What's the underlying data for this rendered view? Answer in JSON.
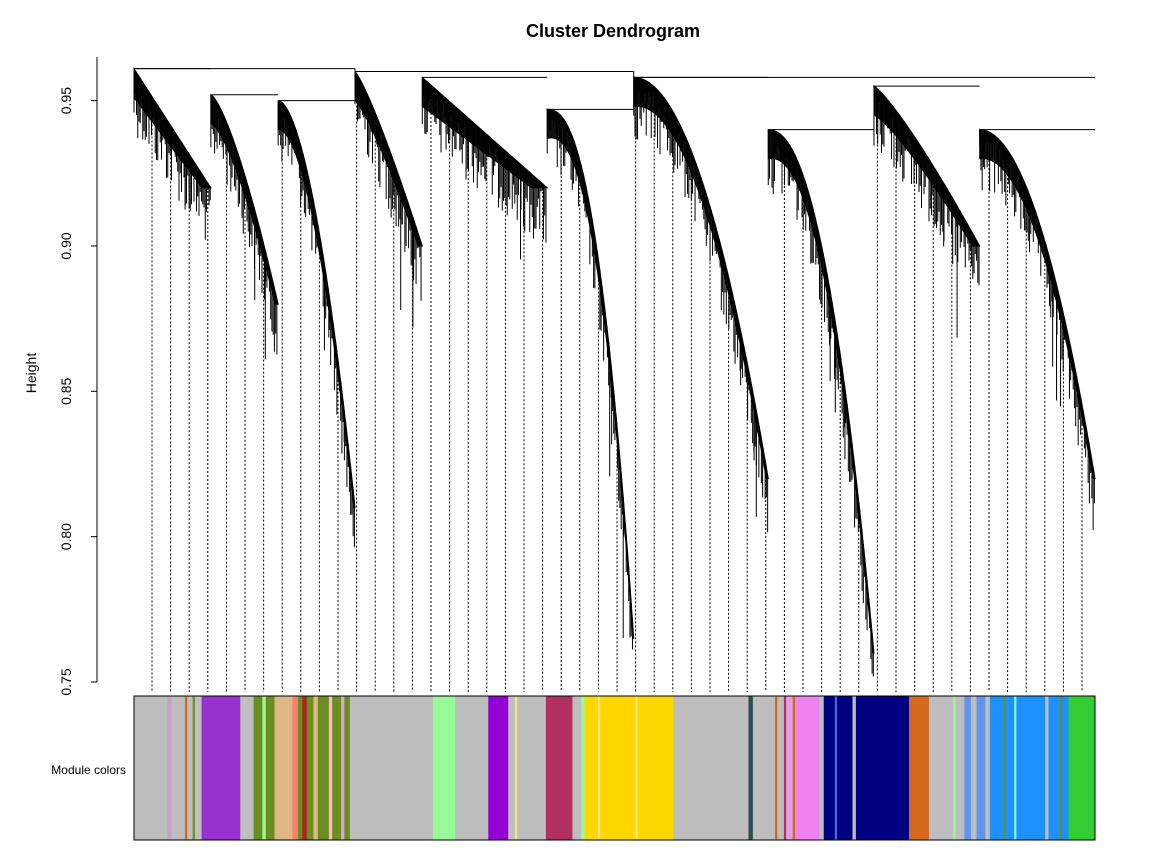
{
  "chart_data": {
    "type": "dendrogram",
    "title": "Cluster Dendrogram",
    "ylabel": "Height",
    "xlabel": "",
    "ylim": [
      0.75,
      0.965
    ],
    "y_ticks": [
      "0.75",
      "0.80",
      "0.85",
      "0.90",
      "0.95"
    ],
    "y_tick_values": [
      0.75,
      0.8,
      0.85,
      0.9,
      0.95
    ],
    "top_merges": [
      {
        "name": "root-left",
        "height": 0.961,
        "span_fraction": [
          0.0,
          0.23
        ]
      },
      {
        "name": "root-mid",
        "height": 0.96,
        "span_fraction": [
          0.23,
          0.52
        ]
      },
      {
        "name": "root-right",
        "height": 0.958,
        "span_fraction": [
          0.52,
          1.0
        ]
      }
    ],
    "module_colors_label": "Module colors",
    "module_colors": [
      {
        "color": "#bebebe",
        "weight": 3
      },
      {
        "color": "#c8a2c8",
        "weight": 0.4
      },
      {
        "color": "#bebebe",
        "weight": 1.2
      },
      {
        "color": "#d2691e",
        "weight": 0.2
      },
      {
        "color": "#bebebe",
        "weight": 0.5
      },
      {
        "color": "#6b8e23",
        "weight": 0.2
      },
      {
        "color": "#bebebe",
        "weight": 0.6
      },
      {
        "color": "#9932cc",
        "weight": 3.5
      },
      {
        "color": "#bebebe",
        "weight": 1.2
      },
      {
        "color": "#6b8e23",
        "weight": 0.8
      },
      {
        "color": "#98fb98",
        "weight": 0.3
      },
      {
        "color": "#6b8e23",
        "weight": 0.8
      },
      {
        "color": "#deb887",
        "weight": 1.6
      },
      {
        "color": "#fa8072",
        "weight": 0.5
      },
      {
        "color": "#6b8e23",
        "weight": 0.4
      },
      {
        "color": "#b22222",
        "weight": 0.4
      },
      {
        "color": "#6b8e23",
        "weight": 0.6
      },
      {
        "color": "#deb887",
        "weight": 0.4
      },
      {
        "color": "#6b8e23",
        "weight": 1.0
      },
      {
        "color": "#ffb6c1",
        "weight": 0.3
      },
      {
        "color": "#6b8e23",
        "weight": 0.8
      },
      {
        "color": "#dda0dd",
        "weight": 0.3
      },
      {
        "color": "#6b8e23",
        "weight": 0.5
      },
      {
        "color": "#bebebe",
        "weight": 7.5
      },
      {
        "color": "#98fb98",
        "weight": 2.0
      },
      {
        "color": "#bebebe",
        "weight": 3.0
      },
      {
        "color": "#9400d3",
        "weight": 1.8
      },
      {
        "color": "#bebebe",
        "weight": 0.6
      },
      {
        "color": "#f0e68c",
        "weight": 0.2
      },
      {
        "color": "#bebebe",
        "weight": 2.6
      },
      {
        "color": "#b03060",
        "weight": 2.4
      },
      {
        "color": "#bebebe",
        "weight": 0.8
      },
      {
        "color": "#98fb98",
        "weight": 0.3
      },
      {
        "color": "#ffd700",
        "weight": 1.2
      },
      {
        "color": "#f0e68c",
        "weight": 0.2
      },
      {
        "color": "#ffd700",
        "weight": 3.2
      },
      {
        "color": "#f0e68c",
        "weight": 0.2
      },
      {
        "color": "#ffd700",
        "weight": 3.2
      },
      {
        "color": "#bebebe",
        "weight": 6.8
      },
      {
        "color": "#2f4f4f",
        "weight": 0.4
      },
      {
        "color": "#bebebe",
        "weight": 2.0
      },
      {
        "color": "#d2691e",
        "weight": 0.2
      },
      {
        "color": "#bebebe",
        "weight": 0.6
      },
      {
        "color": "#b03060",
        "weight": 0.2
      },
      {
        "color": "#dda0dd",
        "weight": 0.6
      },
      {
        "color": "#d2691e",
        "weight": 0.2
      },
      {
        "color": "#ee82ee",
        "weight": 2.2
      },
      {
        "color": "#bebebe",
        "weight": 0.4
      },
      {
        "color": "#000080",
        "weight": 1.0
      },
      {
        "color": "#4169e1",
        "weight": 0.2
      },
      {
        "color": "#000080",
        "weight": 1.4
      },
      {
        "color": "#bebebe",
        "weight": 0.3
      },
      {
        "color": "#000080",
        "weight": 4.8
      },
      {
        "color": "#d2691e",
        "weight": 1.8
      },
      {
        "color": "#bebebe",
        "weight": 2.2
      },
      {
        "color": "#98fb98",
        "weight": 0.2
      },
      {
        "color": "#bebebe",
        "weight": 0.8
      },
      {
        "color": "#6495ed",
        "weight": 0.6
      },
      {
        "color": "#bebebe",
        "weight": 0.5
      },
      {
        "color": "#6495ed",
        "weight": 0.8
      },
      {
        "color": "#bebebe",
        "weight": 0.4
      },
      {
        "color": "#1e90ff",
        "weight": 1.2
      },
      {
        "color": "#6b8e23",
        "weight": 0.2
      },
      {
        "color": "#1e90ff",
        "weight": 0.8
      },
      {
        "color": "#7fffd4",
        "weight": 0.2
      },
      {
        "color": "#1e90ff",
        "weight": 2.6
      },
      {
        "color": "#bebebe",
        "weight": 0.3
      },
      {
        "color": "#1e90ff",
        "weight": 1.0
      },
      {
        "color": "#6b8e23",
        "weight": 0.2
      },
      {
        "color": "#1e90ff",
        "weight": 0.6
      },
      {
        "color": "#32cd32",
        "weight": 2.4
      }
    ]
  }
}
